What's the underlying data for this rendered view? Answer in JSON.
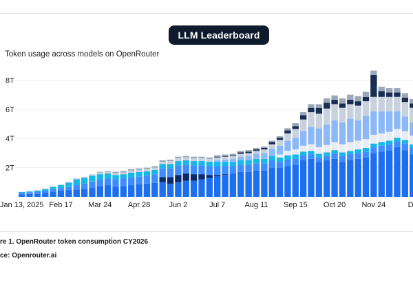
{
  "header": {
    "title": "LLM Leaderboard"
  },
  "caption": "re 1. OpenRouter token consumption CY2026",
  "source": "ce: Openrouter.ai",
  "chart_data": {
    "type": "bar",
    "stacked": true,
    "subtitle": "Token usage across models on OpenRouter",
    "y_ticks": [
      {
        "value": 2,
        "label": "2T"
      },
      {
        "value": 4,
        "label": "4T"
      },
      {
        "value": 6,
        "label": "6T"
      },
      {
        "value": 8,
        "label": "8T"
      }
    ],
    "x_ticks": [
      {
        "index": 0,
        "label": "Jan 13, 2025"
      },
      {
        "index": 5,
        "label": "Feb 17"
      },
      {
        "index": 10,
        "label": "Mar 24"
      },
      {
        "index": 15,
        "label": "Apr 28"
      },
      {
        "index": 20,
        "label": "Jun 2"
      },
      {
        "index": 25,
        "label": "Jul 7"
      },
      {
        "index": 30,
        "label": "Aug 11"
      },
      {
        "index": 35,
        "label": "Sep 15"
      },
      {
        "index": 40,
        "label": "Oct 20"
      },
      {
        "index": 45,
        "label": "Nov 24"
      },
      {
        "index": 50,
        "label": "De"
      }
    ],
    "ylim": [
      0,
      8.5
    ],
    "series": [
      {
        "color": "#1e6ff0",
        "values": [
          0.18,
          0.2,
          0.22,
          0.28,
          0.35,
          0.4,
          0.45,
          0.5,
          0.55,
          0.65,
          0.75,
          0.8,
          0.7,
          0.75,
          0.8,
          0.85,
          0.9,
          0.95,
          1.0,
          0.9,
          1.0,
          1.1,
          1.1,
          1.2,
          1.3,
          1.4,
          1.5,
          1.6,
          1.7,
          1.7,
          1.8,
          1.8,
          2.0,
          2.0,
          2.1,
          2.2,
          2.5,
          2.6,
          2.4,
          2.5,
          2.6,
          2.4,
          2.5,
          2.6,
          2.7,
          3.0,
          3.1,
          3.2,
          3.4,
          3.2,
          2.9,
          2.8
        ]
      },
      {
        "color": "#0b2a6b",
        "values": [
          0,
          0,
          0,
          0,
          0,
          0,
          0,
          0,
          0,
          0,
          0,
          0,
          0,
          0,
          0,
          0,
          0,
          0,
          0.35,
          0.45,
          0.5,
          0.5,
          0.45,
          0.35,
          0.2,
          0.1,
          0.05,
          0,
          0,
          0,
          0,
          0,
          0,
          0,
          0,
          0,
          0,
          0,
          0,
          0,
          0,
          0,
          0,
          0,
          0,
          0,
          0,
          0,
          0,
          0,
          0,
          0
        ]
      },
      {
        "color": "#3f8cff",
        "values": [
          0.1,
          0.12,
          0.13,
          0.15,
          0.18,
          0.2,
          0.22,
          0.3,
          0.35,
          0.4,
          0.45,
          0.45,
          0.5,
          0.5,
          0.55,
          0.55,
          0.55,
          0.6,
          0.6,
          0.6,
          0.65,
          0.6,
          0.6,
          0.6,
          0.6,
          0.6,
          0.55,
          0.5,
          0.5,
          0.5,
          0.5,
          0.5,
          0.5,
          0.4,
          0.45,
          0.4,
          0.35,
          0.3,
          0.3,
          0.3,
          0.35,
          0.4,
          0.4,
          0.4,
          0.4,
          0.4,
          0.4,
          0.4,
          0.4,
          0.45,
          0.45,
          0.45
        ]
      },
      {
        "color": "#18b8e6",
        "values": [
          0.05,
          0.05,
          0.08,
          0.1,
          0.15,
          0.2,
          0.3,
          0.4,
          0.4,
          0.4,
          0.35,
          0.35,
          0.3,
          0.3,
          0.3,
          0.3,
          0.3,
          0.3,
          0.3,
          0.3,
          0.3,
          0.3,
          0.3,
          0.3,
          0.3,
          0.3,
          0.3,
          0.3,
          0.3,
          0.3,
          0.3,
          0.3,
          0.3,
          0.3,
          0.3,
          0.3,
          0.25,
          0.25,
          0.25,
          0.25,
          0.25,
          0.25,
          0.25,
          0.25,
          0.25,
          0.25,
          0.25,
          0.25,
          0.25,
          0.25,
          0.25,
          0.25
        ]
      },
      {
        "color": "#e8edf4",
        "values": [
          0,
          0,
          0,
          0,
          0,
          0,
          0,
          0,
          0,
          0,
          0,
          0,
          0,
          0,
          0,
          0,
          0,
          0,
          0,
          0,
          0,
          0,
          0,
          0,
          0,
          0,
          0,
          0,
          0,
          0,
          0,
          0,
          0,
          0.2,
          0.3,
          0.35,
          0.4,
          0.45,
          0.45,
          0.5,
          0.55,
          0.55,
          0.6,
          0.6,
          0.6,
          0.6,
          0.6,
          0.6,
          0.6,
          0.6,
          0.6,
          0.6
        ]
      },
      {
        "color": "#8db8f8",
        "values": [
          0,
          0,
          0,
          0,
          0,
          0,
          0,
          0,
          0,
          0,
          0,
          0,
          0,
          0,
          0,
          0,
          0,
          0,
          0,
          0,
          0,
          0,
          0,
          0,
          0,
          0.1,
          0.15,
          0.2,
          0.25,
          0.3,
          0.35,
          0.4,
          0.5,
          0.6,
          0.7,
          0.8,
          1.0,
          1.2,
          1.3,
          1.4,
          1.5,
          1.5,
          1.6,
          1.4,
          1.6,
          1.6,
          1.5,
          1.4,
          1.2,
          1.0,
          0.9,
          0.8
        ]
      },
      {
        "color": "#c7d2de",
        "values": [
          0.02,
          0.03,
          0.03,
          0.04,
          0.05,
          0.05,
          0.06,
          0.07,
          0.08,
          0.1,
          0.12,
          0.12,
          0.12,
          0.12,
          0.15,
          0.15,
          0.15,
          0.15,
          0.15,
          0.2,
          0.2,
          0.2,
          0.2,
          0.2,
          0.2,
          0.2,
          0.2,
          0.2,
          0.2,
          0.2,
          0.2,
          0.25,
          0.3,
          0.4,
          0.5,
          0.6,
          0.8,
          1.0,
          1.0,
          1.1,
          1.1,
          1.0,
          1.0,
          1.0,
          1.0,
          1.0,
          1.0,
          1.0,
          1.0,
          1.0,
          1.0,
          0.9
        ]
      },
      {
        "color": "#1a2e55",
        "values": [
          0,
          0,
          0,
          0,
          0,
          0,
          0,
          0,
          0,
          0,
          0,
          0,
          0,
          0,
          0,
          0,
          0,
          0,
          0,
          0,
          0,
          0,
          0,
          0,
          0,
          0.05,
          0.05,
          0.05,
          0.1,
          0.1,
          0.1,
          0.1,
          0.15,
          0.15,
          0.2,
          0.2,
          0.3,
          0.3,
          0.4,
          0.4,
          0.3,
          0.3,
          0.3,
          0.3,
          0.3,
          1.5,
          0.4,
          0.3,
          0.3,
          0.3,
          0.3,
          0.3
        ]
      },
      {
        "color": "#9aa8b8",
        "values": [
          0,
          0,
          0,
          0,
          0,
          0,
          0,
          0,
          0,
          0,
          0.05,
          0.05,
          0.1,
          0.1,
          0.1,
          0.1,
          0.1,
          0.1,
          0.1,
          0.1,
          0.1,
          0.1,
          0.1,
          0.1,
          0.1,
          0.1,
          0.1,
          0.1,
          0.1,
          0.1,
          0.1,
          0.1,
          0.1,
          0.1,
          0.15,
          0.2,
          0.2,
          0.25,
          0.25,
          0.3,
          0.3,
          0.35,
          0.35,
          0.35,
          0.35,
          0.3,
          0.3,
          0.3,
          0.3,
          0.3,
          0.3,
          0.3
        ]
      }
    ]
  }
}
